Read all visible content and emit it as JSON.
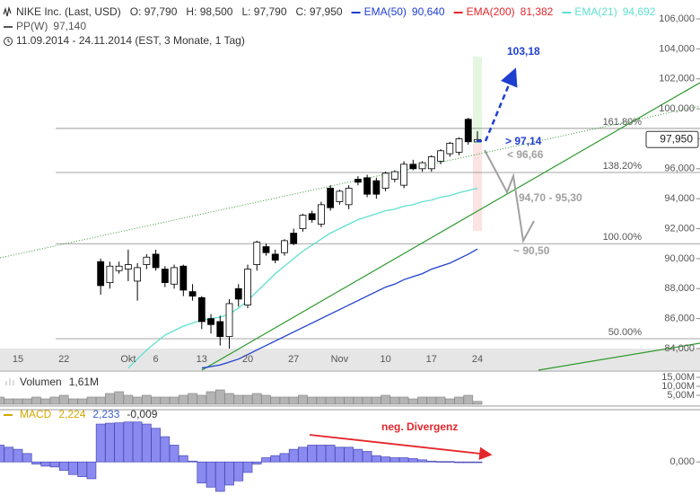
{
  "chart_data": [
    {
      "type": "candlestick",
      "title": "NIKE Inc. (Last, USD)",
      "subtitle": "11.09.2014 - 24.11.2014 (EST, 3 Monate, 1 Tag)",
      "ohlc_labels": [
        "O: 97,790",
        "H: 98,500",
        "L: 97,790",
        "C: 97,950"
      ],
      "last_price_label": "97,950",
      "categories": [
        null,
        null,
        "15",
        null,
        null,
        null,
        null,
        "22",
        null,
        null,
        null,
        null,
        null,
        null,
        "Okt",
        null,
        null,
        "6",
        null,
        null,
        null,
        null,
        "13",
        null,
        null,
        null,
        null,
        "20",
        null,
        null,
        null,
        null,
        "27",
        null,
        null,
        null,
        null,
        "Nov",
        null,
        null,
        null,
        null,
        "10",
        null,
        null,
        null,
        null,
        "17",
        null,
        null,
        null,
        null,
        "24"
      ],
      "open": [
        null,
        null,
        null,
        null,
        null,
        null,
        null,
        null,
        null,
        null,
        null,
        89.8,
        88.4,
        89.2,
        89.3,
        88.5,
        89.6,
        90.3,
        89.3,
        88.3,
        89.5,
        87.8,
        87.4,
        86.0,
        85.8,
        84.8,
        88.0,
        86.9,
        89.6,
        90.8,
        90.3,
        90.4,
        91.7,
        92.0,
        93.0,
        92.3,
        94.7,
        93.8,
        93.6,
        95.3,
        95.4,
        95.2,
        94.7,
        95.3,
        94.9,
        96.3,
        96.0,
        96.0,
        96.5,
        97.0,
        97.1,
        99.3,
        97.79
      ],
      "high": [
        null,
        null,
        null,
        null,
        null,
        null,
        null,
        null,
        null,
        null,
        null,
        90.0,
        89.8,
        89.8,
        90.6,
        89.7,
        90.3,
        90.6,
        89.5,
        89.6,
        89.6,
        88.3,
        87.5,
        86.3,
        86.2,
        87.3,
        88.3,
        89.6,
        91.2,
        91.0,
        90.6,
        91.3,
        92.0,
        93.0,
        93.2,
        93.8,
        94.9,
        94.6,
        94.9,
        95.5,
        95.6,
        95.4,
        95.8,
        95.9,
        96.5,
        96.6,
        96.5,
        96.9,
        97.3,
        97.8,
        98.1,
        99.4,
        98.5
      ],
      "low": [
        null,
        null,
        null,
        null,
        null,
        null,
        null,
        null,
        null,
        null,
        null,
        87.6,
        88.0,
        89.0,
        88.5,
        87.2,
        89.3,
        89.2,
        88.1,
        88.0,
        87.5,
        87.2,
        85.3,
        85.0,
        84.2,
        84.0,
        86.8,
        86.7,
        89.2,
        90.2,
        89.7,
        90.2,
        90.9,
        91.8,
        92.4,
        92.1,
        93.2,
        93.6,
        93.3,
        94.9,
        94.1,
        94.0,
        94.5,
        95.1,
        94.7,
        95.9,
        95.8,
        95.8,
        96.3,
        96.8,
        96.9,
        97.6,
        97.79
      ],
      "close": [
        null,
        null,
        null,
        null,
        null,
        null,
        null,
        null,
        null,
        null,
        null,
        88.2,
        89.5,
        89.5,
        89.6,
        89.4,
        90.1,
        89.4,
        88.4,
        89.4,
        87.9,
        87.5,
        85.8,
        85.6,
        84.8,
        87.0,
        87.3,
        89.3,
        91.1,
        90.4,
        89.9,
        91.2,
        91.0,
        92.9,
        92.6,
        93.6,
        93.4,
        94.5,
        94.7,
        95.1,
        94.3,
        94.3,
        95.7,
        95.8,
        96.3,
        96.0,
        96.4,
        96.8,
        97.2,
        97.7,
        98.0,
        97.8,
        97.95
      ],
      "series": [
        {
          "name": "EMA(50)",
          "color": "#1f3fcf",
          "value_label": "90,640",
          "values": [
            null,
            null,
            null,
            null,
            null,
            null,
            null,
            null,
            null,
            null,
            null,
            null,
            null,
            null,
            null,
            null,
            null,
            null,
            null,
            null,
            null,
            null,
            82.7,
            82.8,
            82.9,
            83.1,
            83.3,
            83.6,
            83.9,
            84.2,
            84.5,
            84.8,
            85.1,
            85.4,
            85.7,
            86.0,
            86.3,
            86.6,
            86.9,
            87.2,
            87.5,
            87.8,
            88.1,
            88.3,
            88.6,
            88.8,
            89.0,
            89.3,
            89.5,
            89.7,
            90.0,
            90.3,
            90.64
          ]
        },
        {
          "name": "EMA(21)",
          "color": "#5fe0cf",
          "value_label": "94,692",
          "values": [
            null,
            null,
            null,
            null,
            null,
            null,
            null,
            null,
            null,
            null,
            null,
            null,
            null,
            null,
            82.7,
            83.3,
            83.9,
            84.4,
            84.9,
            85.2,
            85.5,
            85.7,
            85.9,
            86.0,
            86.1,
            86.3,
            86.7,
            87.2,
            87.8,
            88.4,
            89.0,
            89.5,
            90.0,
            90.5,
            90.9,
            91.3,
            91.7,
            92.0,
            92.3,
            92.6,
            92.8,
            93.0,
            93.2,
            93.3,
            93.5,
            93.6,
            93.8,
            93.9,
            94.1,
            94.2,
            94.4,
            94.55,
            94.692
          ]
        }
      ],
      "legend_extra": [
        {
          "name": "EMA(200)",
          "color": "#e4262b",
          "value_label": "81,382"
        }
      ],
      "pivot": {
        "name": "PP(W)",
        "color": "#555555",
        "value_label": "97,140"
      },
      "fib_levels": [
        {
          "price": 98.69,
          "label": "161.80%"
        },
        {
          "price": 95.75,
          "label": "138.20%"
        },
        {
          "price": 91.0,
          "label": "100.00%"
        },
        {
          "price": 84.66,
          "label": "50.00%"
        }
      ],
      "annotations": [
        {
          "text": "103,18",
          "color": "#1f3fcf"
        },
        {
          "text": "> 97,14",
          "color": "#1f3fcf"
        },
        {
          "text": "< 96,66",
          "color": "#a0a0a0"
        },
        {
          "text": "94,70 - 95,30",
          "color": "#a0a0a0"
        },
        {
          "text": "~ 90,50",
          "color": "#a0a0a0"
        }
      ],
      "ylim": [
        82.56,
        107.26
      ],
      "yticks": [
        {
          "value": 84,
          "label": "84,000"
        },
        {
          "value": 86,
          "label": "86,000"
        },
        {
          "value": 88,
          "label": "88,000"
        },
        {
          "value": 90,
          "label": "90,000"
        },
        {
          "value": 92,
          "label": "92,000"
        },
        {
          "value": 94,
          "label": "94,000"
        },
        {
          "value": 96,
          "label": "96,000"
        },
        {
          "value": 98,
          "label": "98,000"
        },
        {
          "value": 100,
          "label": "100,000"
        },
        {
          "value": 102,
          "label": "102,000"
        },
        {
          "value": 104,
          "label": "104,000"
        },
        {
          "value": 106,
          "label": "106,000"
        }
      ]
    },
    {
      "type": "bar",
      "title": "Volumen",
      "value_label": "1,61M",
      "color": "#b4b4b4",
      "values": [
        4,
        3,
        3,
        3,
        4,
        3,
        4,
        5,
        3,
        3,
        4,
        4,
        6,
        7,
        5,
        4,
        5,
        4,
        4,
        4,
        5,
        6,
        5,
        7,
        8,
        6,
        5,
        5,
        6,
        5,
        4,
        4,
        4,
        5,
        4,
        4,
        4,
        4,
        4,
        4,
        4,
        4,
        5,
        4,
        4,
        3,
        4,
        4,
        4,
        3,
        4,
        5,
        1.61
      ],
      "ylim": [
        0,
        17.5
      ],
      "yticks": [
        {
          "value": 5,
          "label": "5,00M"
        },
        {
          "value": 10,
          "label": "10,00M"
        },
        {
          "value": 15,
          "label": "15,00M"
        }
      ]
    },
    {
      "type": "bar",
      "title": "MACD",
      "title_color": "#d4a800",
      "color": "#8a8af0",
      "legend_values": [
        {
          "label": "2,224",
          "color": "#d4a800"
        },
        {
          "label": "2,233",
          "color": "#3a5fcd"
        },
        {
          "label": "-0,009",
          "color": "#333333"
        }
      ],
      "values": [
        0.4,
        0.35,
        0.3,
        0.2,
        -0.05,
        -0.1,
        -0.12,
        -0.2,
        -0.3,
        -0.35,
        -0.4,
        0.9,
        0.92,
        0.93,
        0.95,
        0.95,
        0.9,
        0.8,
        0.6,
        0.4,
        0.15,
        0.02,
        -0.5,
        -0.6,
        -0.7,
        -0.55,
        -0.45,
        -0.25,
        -0.05,
        0.1,
        0.15,
        0.2,
        0.3,
        0.35,
        0.4,
        0.4,
        0.4,
        0.35,
        0.35,
        0.3,
        0.25,
        0.15,
        0.12,
        0.1,
        0.1,
        0.08,
        0.05,
        0.02,
        0.01,
        0.01,
        0.0,
        -0.005,
        -0.009
      ],
      "ylim": [
        -1.0,
        1.2
      ],
      "yticks": [
        {
          "value": 0,
          "label": "0,000"
        }
      ],
      "annotation": {
        "text": "neg. Divergenz",
        "color": "#e4262b"
      }
    }
  ]
}
